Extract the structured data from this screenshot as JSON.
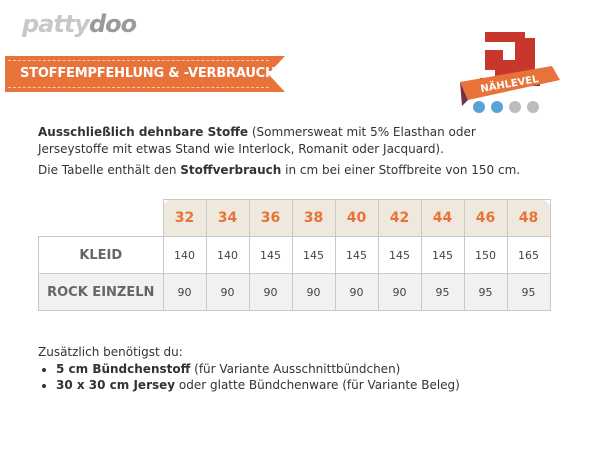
{
  "logo": {
    "text_a": "patty",
    "text_b": "doo"
  },
  "banner": {
    "title": "STOFFEMPFEHLUNG & -VERBRAUCH"
  },
  "badge": {
    "label": "NÄHLEVEL",
    "level": 2,
    "max": 4,
    "colors": {
      "active": "#5aa3d6",
      "inactive": "#bcbcbc"
    }
  },
  "intro": {
    "bold": "Ausschließlich dehnbare Stoffe",
    "rest": " (Sommersweat mit 5% Elasthan oder Jerseystoffe mit etwas Stand wie Interlock, Romanit oder Jacquard)."
  },
  "note": {
    "pre": "Die Tabelle enthält den ",
    "bold": "Stoffverbrauch",
    "post": " in cm bei einer Stoffbreite von 150 cm."
  },
  "table": {
    "sizes": [
      "32",
      "34",
      "36",
      "38",
      "40",
      "42",
      "44",
      "46",
      "48"
    ],
    "rows": [
      {
        "label": "KLEID",
        "values": [
          "140",
          "140",
          "145",
          "145",
          "145",
          "145",
          "145",
          "150",
          "165"
        ]
      },
      {
        "label": "ROCK EINZELN",
        "values": [
          "90",
          "90",
          "90",
          "90",
          "90",
          "90",
          "95",
          "95",
          "95"
        ]
      }
    ]
  },
  "extra": {
    "title": "Zusätzlich benötigst du:",
    "items": [
      {
        "bold": "5 cm Bündchenstoff",
        "rest": " (für Variante Ausschnittbündchen)"
      },
      {
        "bold": "30 x 30 cm Jersey",
        "rest": " oder glatte Bündchenware (für Variante Beleg)"
      }
    ]
  },
  "colors": {
    "accent": "#e8733a",
    "header_bg": "#efe8dc"
  }
}
